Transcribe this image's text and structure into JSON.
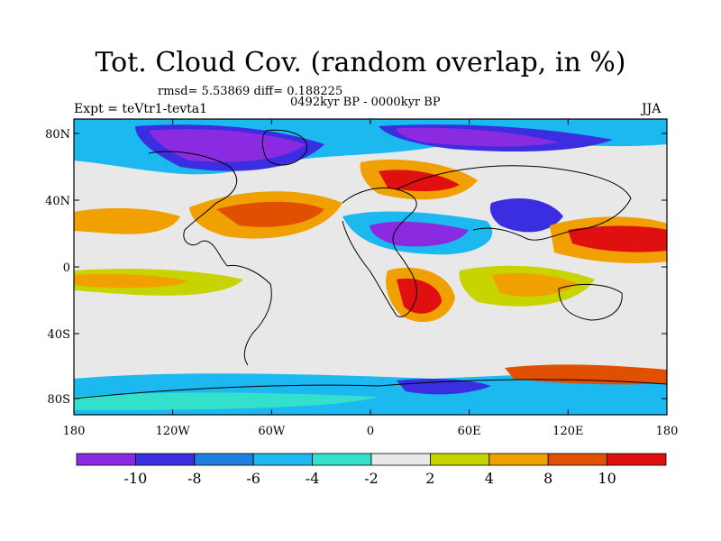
{
  "title": "Tot. Cloud Cov. (random overlap, in %)",
  "stats_line": "rmsd= 5.53869 diff= 0.188225",
  "period": "0492kyr BP - 0000kyr BP",
  "experiment": "Expt = teVtr1-tevta1",
  "season": "JJA",
  "x_tick_labels": [
    "180",
    "120W",
    "60W",
    "0",
    "60E",
    "120E",
    "180"
  ],
  "y_tick_labels": [
    "80N",
    "40N",
    "0",
    "40S",
    "80S"
  ],
  "colorbar": {
    "labels": [
      "-10",
      "-8",
      "-6",
      "-4",
      "-2",
      "2",
      "4",
      "8",
      "10"
    ],
    "colors": [
      "#8a2be2",
      "#3a2ee0",
      "#1e7fe0",
      "#1cb8f0",
      "#33e0cc",
      "#e8e8e8",
      "#c8d400",
      "#f0a000",
      "#e05000",
      "#e01010"
    ]
  },
  "fields": {
    "land": "#000000",
    "missing": "#e8e8e8"
  }
}
